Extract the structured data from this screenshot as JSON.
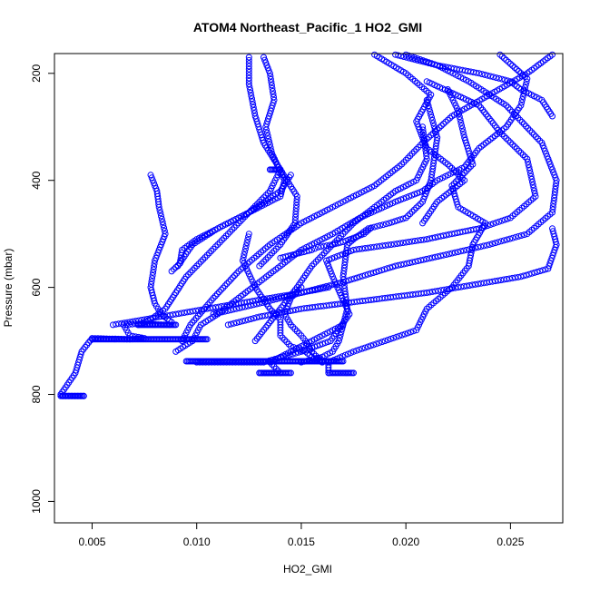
{
  "chart_data": {
    "type": "scatter",
    "title": "ATOM4 Northeast_Pacific_1 HO2_GMI",
    "xlabel": "HO2_GMI",
    "ylabel": "Pressure (mbar)",
    "xlim": [
      0.0032,
      0.0275
    ],
    "ylim": [
      1040,
      163
    ],
    "y_reversed": true,
    "x_ticks": [
      0.005,
      0.01,
      0.015,
      0.02,
      0.025
    ],
    "x_tick_labels": [
      "0.005",
      "0.010",
      "0.015",
      "0.020",
      "0.025"
    ],
    "y_ticks": [
      200,
      400,
      600,
      800,
      1000
    ],
    "y_tick_labels": [
      "200",
      "400",
      "600",
      "800",
      "1000"
    ],
    "grid": false,
    "legend": "none",
    "marker": "open-circle",
    "color": "#0000ff",
    "series": [
      {
        "x": [
          0.0078,
          0.0081,
          0.0082,
          0.0085,
          0.008,
          0.0078,
          0.008,
          0.0083,
          0.0088,
          0.0087,
          0.0072,
          0.0065,
          0.0068,
          0.0075,
          0.0068,
          0.005,
          0.0045,
          0.0042,
          0.0035,
          0.0036,
          0.0046
        ],
        "y": [
          390,
          420,
          450,
          500,
          550,
          600,
          630,
          650,
          665,
          670,
          668,
          670,
          690,
          695,
          697,
          695,
          720,
          760,
          800,
          803,
          803
        ]
      },
      {
        "x": [
          0.027,
          0.0258,
          0.024,
          0.0222,
          0.0208,
          0.0198,
          0.0185,
          0.0165,
          0.015,
          0.0135,
          0.012,
          0.0108,
          0.0097,
          0.0093
        ],
        "y": [
          165,
          200,
          240,
          280,
          330,
          370,
          410,
          450,
          480,
          520,
          570,
          620,
          670,
          700
        ]
      },
      {
        "x": [
          0.0245,
          0.0258,
          0.0255,
          0.0248,
          0.0235,
          0.0228,
          0.0215,
          0.0208,
          0.0195,
          0.0178,
          0.0165,
          0.015,
          0.014,
          0.013,
          0.012,
          0.011,
          0.0102,
          0.0098,
          0.009
        ],
        "y": [
          165,
          210,
          260,
          300,
          340,
          375,
          400,
          420,
          440,
          470,
          500,
          530,
          560,
          590,
          620,
          650,
          670,
          700,
          720
        ]
      },
      {
        "x": [
          0.02,
          0.0215,
          0.023,
          0.0248,
          0.0265,
          0.0272,
          0.027,
          0.0258,
          0.024,
          0.0218,
          0.0195,
          0.017,
          0.015,
          0.013,
          0.0108
        ],
        "y": [
          165,
          185,
          215,
          260,
          330,
          400,
          460,
          500,
          520,
          540,
          560,
          590,
          610,
          630,
          650
        ]
      },
      {
        "x": [
          0.027,
          0.0272,
          0.0268,
          0.0255,
          0.024,
          0.0225,
          0.021,
          0.019,
          0.017,
          0.015,
          0.013,
          0.0115
        ],
        "y": [
          490,
          520,
          565,
          580,
          590,
          600,
          610,
          620,
          630,
          640,
          655,
          670
        ]
      },
      {
        "x": [
          0.0195,
          0.0215,
          0.0235,
          0.025,
          0.0255,
          0.0265,
          0.027
        ],
        "y": [
          165,
          185,
          200,
          215,
          230,
          250,
          280
        ]
      },
      {
        "x": [
          0.0185,
          0.02,
          0.0212,
          0.0205,
          0.021,
          0.022,
          0.0228,
          0.0215,
          0.0208
        ],
        "y": [
          165,
          200,
          240,
          290,
          340,
          370,
          400,
          440,
          480
        ]
      },
      {
        "x": [
          0.0183,
          0.018,
          0.017,
          0.0165,
          0.0158,
          0.0155,
          0.015,
          0.0145,
          0.014
        ],
        "y": [
          490,
          500,
          515,
          520,
          525,
          530,
          535,
          540,
          545
        ]
      },
      {
        "x": [
          0.006,
          0.0075,
          0.009,
          0.0105,
          0.012,
          0.0135,
          0.015,
          0.0163
        ],
        "y": [
          670,
          660,
          650,
          640,
          630,
          620,
          610,
          600
        ]
      },
      {
        "x": [
          0.021,
          0.0235,
          0.0245,
          0.0258,
          0.0262,
          0.025,
          0.0235,
          0.0222,
          0.021,
          0.0193,
          0.0175,
          0.0162,
          0.0165,
          0.0173,
          0.0164,
          0.015,
          0.0132,
          0.012,
          0.01
        ],
        "y": [
          215,
          260,
          310,
          360,
          430,
          470,
          490,
          500,
          510,
          520,
          530,
          550,
          580,
          650,
          700,
          720,
          740,
          740,
          740
        ]
      },
      {
        "x": [
          0.022,
          0.0225,
          0.0228,
          0.0232,
          0.0222,
          0.0225,
          0.0238,
          0.0232,
          0.023,
          0.0222,
          0.021,
          0.0205,
          0.019,
          0.0175,
          0.0163,
          0.0163
        ],
        "y": [
          230,
          270,
          320,
          370,
          410,
          450,
          480,
          520,
          560,
          600,
          640,
          680,
          700,
          720,
          740,
          760
        ]
      },
      {
        "x": [
          0.0208,
          0.021,
          0.0205,
          0.0195,
          0.0185,
          0.0175,
          0.0165,
          0.0155,
          0.0148,
          0.0138,
          0.0128
        ],
        "y": [
          300,
          360,
          400,
          420,
          450,
          480,
          520,
          560,
          600,
          650,
          700
        ]
      },
      {
        "x": [
          0.021,
          0.0215,
          0.0212,
          0.0208,
          0.02,
          0.0192,
          0.0182,
          0.0175,
          0.0172,
          0.017,
          0.0172,
          0.0168,
          0.0165,
          0.016,
          0.015
        ],
        "y": [
          250,
          320,
          400,
          440,
          470,
          480,
          490,
          510,
          520,
          580,
          640,
          700,
          720,
          730,
          740
        ]
      },
      {
        "x": [
          0.0125,
          0.0125,
          0.0128,
          0.0132,
          0.014,
          0.0148,
          0.0147,
          0.014,
          0.013
        ],
        "y": [
          170,
          220,
          280,
          330,
          380,
          430,
          480,
          520,
          560
        ]
      },
      {
        "x": [
          0.0132,
          0.0135,
          0.0137,
          0.0133,
          0.0136,
          0.0142,
          0.014,
          0.013,
          0.012,
          0.011,
          0.01,
          0.0093,
          0.0092,
          0.0088
        ],
        "y": [
          170,
          200,
          250,
          300,
          350,
          400,
          430,
          450,
          470,
          490,
          510,
          530,
          555,
          570
        ]
      },
      {
        "x": [
          0.0145,
          0.014,
          0.0125,
          0.011,
          0.0098,
          0.0091
        ],
        "y": [
          390,
          420,
          460,
          490,
          520,
          560
        ]
      },
      {
        "x": [
          0.0125,
          0.0122,
          0.0128,
          0.0135,
          0.014,
          0.014,
          0.0145,
          0.0152,
          0.0155,
          0.016
        ],
        "y": [
          500,
          550,
          600,
          640,
          660,
          690,
          710,
          720,
          730,
          740
        ]
      },
      {
        "x": [
          0.014,
          0.0135,
          0.0125,
          0.0115,
          0.0105,
          0.0095,
          0.009,
          0.0085,
          0.0078,
          0.0072
        ],
        "y": [
          380,
          420,
          460,
          500,
          540,
          580,
          610,
          640,
          660,
          670
        ]
      },
      {
        "x": [
          0.013,
          0.0138,
          0.014,
          0.0135,
          0.0145,
          0.015,
          0.0155,
          0.016,
          0.0165,
          0.017
        ],
        "y": [
          760,
          760,
          760,
          740,
          720,
          710,
          700,
          690,
          680,
          670
        ]
      },
      {
        "x": [
          0.015,
          0.0145,
          0.0142,
          0.0145,
          0.015,
          0.0152,
          0.0155,
          0.016
        ],
        "y": [
          600,
          620,
          650,
          670,
          690,
          700,
          720,
          740
        ]
      }
    ],
    "horizontal_runs": [
      {
        "y": 697,
        "x_from": 0.005,
        "x_to": 0.0105
      },
      {
        "y": 738,
        "x_from": 0.0095,
        "x_to": 0.017
      },
      {
        "y": 760,
        "x_from": 0.013,
        "x_to": 0.0145
      },
      {
        "y": 760,
        "x_from": 0.0163,
        "x_to": 0.0175
      },
      {
        "y": 803,
        "x_from": 0.0035,
        "x_to": 0.0046
      },
      {
        "y": 670,
        "x_from": 0.0072,
        "x_to": 0.009
      },
      {
        "y": 380,
        "x_from": 0.0135,
        "x_to": 0.014
      }
    ]
  }
}
